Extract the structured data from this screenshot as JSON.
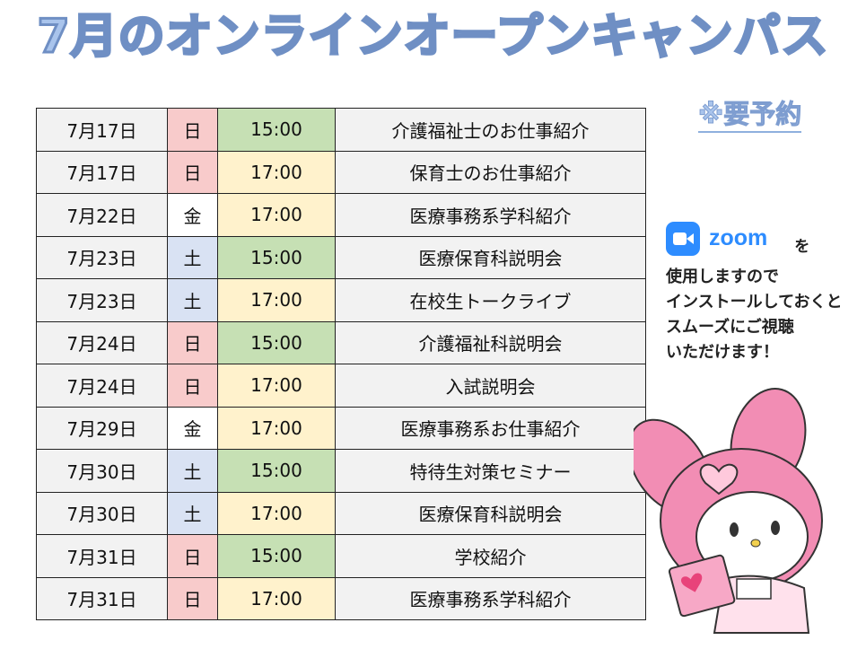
{
  "title": "7月のオンラインオープンキャンパス",
  "reservation_note": "※要予約",
  "schedule": [
    {
      "date": "7月17日",
      "day": "日",
      "time": "15:00",
      "topic": "介護福祉士のお仕事紹介"
    },
    {
      "date": "7月17日",
      "day": "日",
      "time": "17:00",
      "topic": "保育士のお仕事紹介"
    },
    {
      "date": "7月22日",
      "day": "金",
      "time": "17:00",
      "topic": "医療事務系学科紹介"
    },
    {
      "date": "7月23日",
      "day": "土",
      "time": "15:00",
      "topic": "医療保育科説明会"
    },
    {
      "date": "7月23日",
      "day": "土",
      "time": "17:00",
      "topic": "在校生トークライブ"
    },
    {
      "date": "7月24日",
      "day": "日",
      "time": "15:00",
      "topic": "介護福祉科説明会"
    },
    {
      "date": "7月24日",
      "day": "日",
      "time": "17:00",
      "topic": "入試説明会"
    },
    {
      "date": "7月29日",
      "day": "金",
      "time": "17:00",
      "topic": "医療事務系お仕事紹介"
    },
    {
      "date": "7月30日",
      "day": "土",
      "time": "15:00",
      "topic": "特待生対策セミナー"
    },
    {
      "date": "7月30日",
      "day": "土",
      "time": "17:00",
      "topic": "医療保育科説明会"
    },
    {
      "date": "7月31日",
      "day": "日",
      "time": "15:00",
      "topic": "学校紹介"
    },
    {
      "date": "7月31日",
      "day": "日",
      "time": "17:00",
      "topic": "医療事務系学科紹介"
    }
  ],
  "colors": {
    "sunday": "#f8cbcb",
    "friday": "#ffffff",
    "saturday": "#d9e2f3",
    "time_1500": "#c6e0b4",
    "time_1700": "#fff2cc",
    "title": "#a9c4ec",
    "zoom": "#2d8cff"
  },
  "zoom": {
    "logo_text": "zoom",
    "icon": "zoom-camera-icon",
    "particle": "を",
    "lines": [
      "使用しますので",
      "インストールしておくと",
      "スムーズにご視聴",
      "いただけます！"
    ]
  },
  "mascot": {
    "icon": "rabbit-mascot-with-letter"
  }
}
